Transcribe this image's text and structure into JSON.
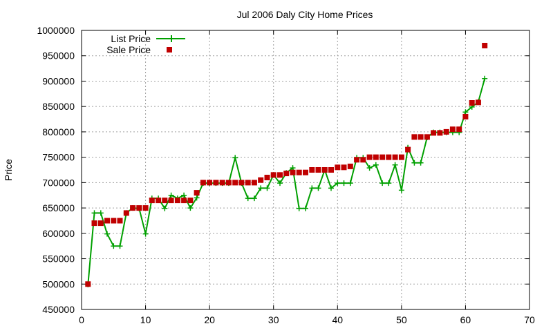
{
  "chart_data": {
    "type": "line",
    "title": "Jul 2006 Daly City Home Prices",
    "xlabel": "",
    "ylabel": "Price",
    "xlim": [
      0,
      70
    ],
    "ylim": [
      450000,
      1000000
    ],
    "x_ticks": [
      0,
      10,
      20,
      30,
      40,
      50,
      60,
      70
    ],
    "y_ticks": [
      450000,
      500000,
      550000,
      600000,
      650000,
      700000,
      750000,
      800000,
      850000,
      900000,
      950000,
      1000000
    ],
    "grid": true,
    "legend_position": "top-left",
    "series": [
      {
        "name": "List Price",
        "style": "linespoints",
        "marker": "plus",
        "color": "#00a000",
        "x": [
          1,
          2,
          3,
          4,
          5,
          6,
          7,
          8,
          9,
          10,
          11,
          12,
          13,
          14,
          15,
          16,
          17,
          18,
          19,
          20,
          21,
          22,
          23,
          24,
          25,
          26,
          27,
          28,
          29,
          30,
          31,
          32,
          33,
          34,
          35,
          36,
          37,
          38,
          39,
          40,
          41,
          42,
          43,
          44,
          45,
          46,
          47,
          48,
          49,
          50,
          51,
          52,
          53,
          54,
          55,
          56,
          57,
          58,
          59,
          60,
          61,
          62,
          63
        ],
        "values": [
          499000,
          640000,
          640000,
          599000,
          575000,
          575000,
          640000,
          650000,
          649000,
          599000,
          669000,
          669000,
          649000,
          675000,
          669000,
          675000,
          650000,
          670000,
          699000,
          699000,
          699000,
          699000,
          699000,
          749000,
          699000,
          669000,
          669000,
          689000,
          689000,
          715000,
          699000,
          719000,
          729000,
          649000,
          649000,
          689000,
          689000,
          725000,
          689000,
          699000,
          699000,
          699000,
          749000,
          749000,
          729000,
          735000,
          699000,
          699000,
          735000,
          685000,
          769000,
          739000,
          739000,
          789000,
          799000,
          799000,
          799000,
          799000,
          799000,
          839000,
          849000,
          859000,
          905000
        ]
      },
      {
        "name": "Sale Price",
        "style": "points",
        "marker": "square",
        "color": "#c00000",
        "x": [
          1,
          2,
          3,
          4,
          5,
          6,
          7,
          8,
          9,
          10,
          11,
          12,
          13,
          14,
          15,
          16,
          17,
          18,
          19,
          20,
          21,
          22,
          23,
          24,
          25,
          26,
          27,
          28,
          29,
          30,
          31,
          32,
          33,
          34,
          35,
          36,
          37,
          38,
          39,
          40,
          41,
          42,
          43,
          44,
          45,
          46,
          47,
          48,
          49,
          50,
          51,
          52,
          53,
          54,
          55,
          56,
          57,
          58,
          59,
          60,
          61,
          62,
          63
        ],
        "values": [
          500000,
          620000,
          620000,
          625000,
          625000,
          625000,
          640000,
          650000,
          650000,
          650000,
          665000,
          665000,
          665000,
          665000,
          665000,
          665000,
          665000,
          680000,
          700000,
          700000,
          700000,
          700000,
          700000,
          700000,
          700000,
          700000,
          700000,
          705000,
          710000,
          715000,
          715000,
          718000,
          720000,
          720000,
          720000,
          725000,
          725000,
          725000,
          725000,
          730000,
          730000,
          732000,
          745000,
          745000,
          750000,
          750000,
          750000,
          750000,
          750000,
          750000,
          765000,
          790000,
          790000,
          790000,
          798000,
          798000,
          800000,
          805000,
          805000,
          830000,
          857000,
          858000,
          970000
        ]
      }
    ]
  }
}
